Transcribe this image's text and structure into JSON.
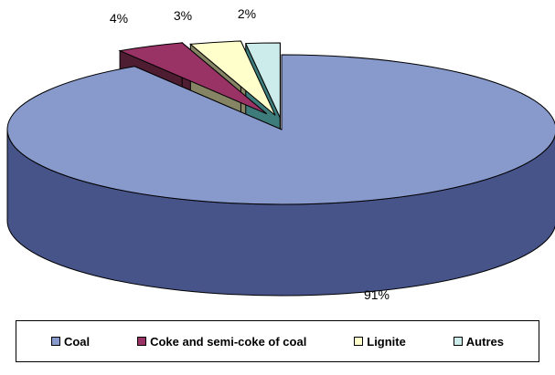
{
  "chart_data": {
    "type": "pie",
    "style": "3d-exploded",
    "categories": [
      "Coal",
      "Coke and semi-coke of coal",
      "Lignite",
      "Autres"
    ],
    "values": [
      91,
      4,
      3,
      2
    ],
    "value_labels": [
      "91%",
      "4%",
      "3%",
      "2%"
    ],
    "unit": "%",
    "title": "",
    "legend_position": "bottom",
    "colors": [
      "#8899CC",
      "#993366",
      "#FFFFCC",
      "#CCECEC"
    ],
    "side_colors": [
      "#465489",
      "#4F1D32",
      "#858565",
      "#3E7C7C"
    ]
  }
}
